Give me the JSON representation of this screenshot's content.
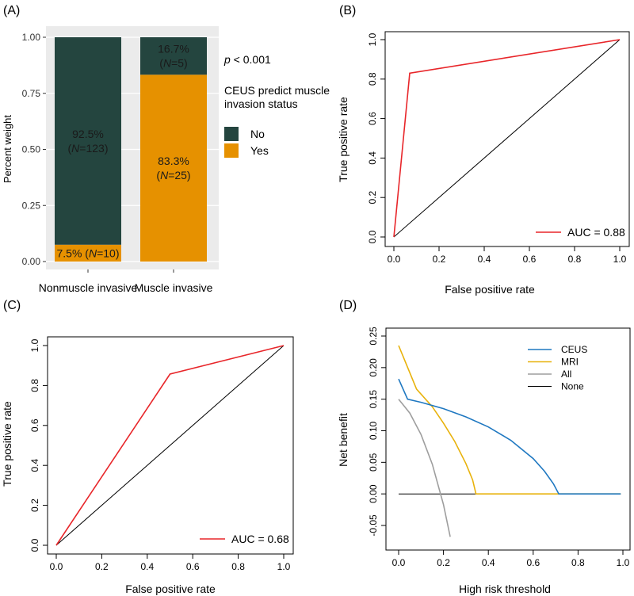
{
  "panels": {
    "A": {
      "label": "(A)",
      "chart_data": {
        "type": "bar",
        "stacked": true,
        "categories": [
          "Nonmuscle invasive",
          "Muscle invasive"
        ],
        "series": [
          {
            "name": "Yes",
            "values": [
              0.075,
              0.833
            ],
            "color": "#E69100",
            "labels": [
              {
                "pct": "7.5%",
                "n": "10"
              },
              {
                "pct": "83.3%",
                "n": "25"
              }
            ]
          },
          {
            "name": "No",
            "values": [
              0.925,
              0.167
            ],
            "color": "#24453F",
            "labels": [
              {
                "pct": "92.5%",
                "n": "123"
              },
              {
                "pct": "16.7%",
                "n": "5"
              }
            ]
          }
        ],
        "ylabel": "Percent weight",
        "ylim": [
          0,
          1
        ],
        "yticks": [
          "0.00",
          "0.25",
          "0.50",
          "0.75",
          "1.00"
        ],
        "panel_background": "#EBEBEB",
        "annotation": {
          "p": "p",
          "rest": " < 0.001"
        },
        "legend": {
          "title_line1": "CEUS predict muscle",
          "title_line2": "invasion status",
          "entries": [
            "No",
            "Yes"
          ],
          "position": "right"
        }
      }
    },
    "B": {
      "label": "(B)",
      "chart_data": {
        "type": "line",
        "series": [
          {
            "name": "AUC = 0.88",
            "x": [
              0,
              0.07,
              1
            ],
            "y": [
              0,
              0.83,
              1
            ],
            "color": "#E8262A"
          },
          {
            "name": "",
            "x": [
              0,
              1
            ],
            "y": [
              0,
              1
            ],
            "color": "#000000"
          }
        ],
        "xlabel": "False positive rate",
        "ylabel": "True positive rate",
        "xlim": [
          0,
          1
        ],
        "ylim": [
          0,
          1
        ],
        "xticks": [
          "0.0",
          "0.2",
          "0.4",
          "0.6",
          "0.8",
          "1.0"
        ],
        "yticks": [
          "0.0",
          "0.2",
          "0.4",
          "0.6",
          "0.8",
          "1.0"
        ],
        "legend": {
          "position": "bottom-right",
          "entries": [
            "AUC = 0.88"
          ]
        }
      }
    },
    "C": {
      "label": "(C)",
      "chart_data": {
        "type": "line",
        "series": [
          {
            "name": "AUC = 0.68",
            "x": [
              0,
              0.5,
              1
            ],
            "y": [
              0,
              0.857,
              1
            ],
            "color": "#E8262A"
          },
          {
            "name": "",
            "x": [
              0,
              1
            ],
            "y": [
              0,
              1
            ],
            "color": "#000000"
          }
        ],
        "xlabel": "False positive rate",
        "ylabel": "True positive rate",
        "xlim": [
          0,
          1
        ],
        "ylim": [
          0,
          1
        ],
        "xticks": [
          "0.0",
          "0.2",
          "0.4",
          "0.6",
          "0.8",
          "1.0"
        ],
        "yticks": [
          "0.0",
          "0.2",
          "0.4",
          "0.6",
          "0.8",
          "1.0"
        ],
        "legend": {
          "position": "bottom-right",
          "entries": [
            "AUC = 0.68"
          ]
        }
      }
    },
    "D": {
      "label": "(D)",
      "chart_data": {
        "type": "line",
        "series": [
          {
            "name": "CEUS",
            "color": "#1F78C1",
            "x": [
              0,
              0.04,
              0.1,
              0.2,
              0.3,
              0.4,
              0.5,
              0.6,
              0.65,
              0.69,
              0.714,
              0.99
            ],
            "y": [
              0.182,
              0.15,
              0.145,
              0.135,
              0.122,
              0.106,
              0.085,
              0.056,
              0.036,
              0.016,
              0.0,
              0.0
            ]
          },
          {
            "name": "MRI",
            "color": "#E8B20C",
            "x": [
              0,
              0.08,
              0.15,
              0.2,
              0.25,
              0.3,
              0.33,
              0.345,
              0.99
            ],
            "y": [
              0.235,
              0.166,
              0.138,
              0.112,
              0.083,
              0.048,
              0.022,
              0.0,
              0.0
            ]
          },
          {
            "name": "All",
            "color": "#9E9E9E",
            "x": [
              0,
              0.05,
              0.1,
              0.15,
              0.2,
              0.23
            ],
            "y": [
              0.15,
              0.128,
              0.094,
              0.047,
              -0.017,
              -0.068
            ]
          },
          {
            "name": "None",
            "color": "#000000",
            "x": [
              0,
              0.99
            ],
            "y": [
              0,
              0
            ]
          }
        ],
        "xlabel": "High risk threshold",
        "ylabel": "Net benefit",
        "xlim": [
          0,
          1
        ],
        "ylim": [
          -0.05,
          0.25
        ],
        "xticks": [
          "0.0",
          "0.2",
          "0.4",
          "0.6",
          "0.8",
          "1.0"
        ],
        "yticks": [
          "-0.05",
          "0.00",
          "0.05",
          "0.10",
          "0.15",
          "0.20",
          "0.25"
        ],
        "legend": {
          "position": "top-right",
          "entries": [
            "CEUS",
            "MRI",
            "All",
            "None"
          ]
        }
      }
    }
  }
}
